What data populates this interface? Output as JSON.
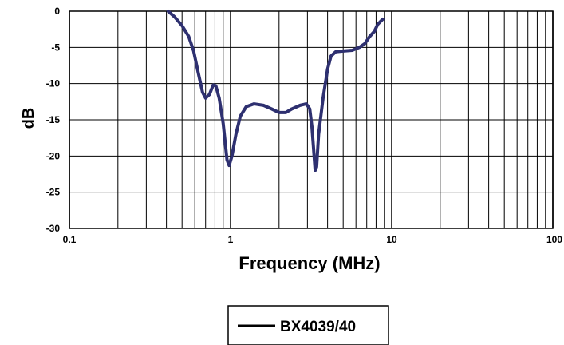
{
  "chart_data": {
    "type": "line",
    "xscale": "log",
    "xlim": [
      0.1,
      100
    ],
    "ylim": [
      -30,
      0
    ],
    "xlabel": "Frequency (MHz)",
    "ylabel": "dB",
    "xticks": [
      {
        "value": 0.1,
        "label": "0.1"
      },
      {
        "value": 1,
        "label": "1"
      },
      {
        "value": 10,
        "label": "10"
      },
      {
        "value": 100,
        "label": "100"
      }
    ],
    "yticks": [
      {
        "value": 0,
        "label": "0"
      },
      {
        "value": -5,
        "label": "-5"
      },
      {
        "value": -10,
        "label": "-10"
      },
      {
        "value": -15,
        "label": "-15"
      },
      {
        "value": -20,
        "label": "-20"
      },
      {
        "value": -25,
        "label": "-25"
      },
      {
        "value": -30,
        "label": "-30"
      }
    ],
    "grid": true,
    "legend_position": "bottom-center",
    "series": [
      {
        "name": "BX4039/40",
        "color": "#2e3070",
        "points": [
          [
            0.41,
            0.0
          ],
          [
            0.45,
            -0.8
          ],
          [
            0.5,
            -2.0
          ],
          [
            0.55,
            -3.5
          ],
          [
            0.59,
            -5.5
          ],
          [
            0.63,
            -8.5
          ],
          [
            0.67,
            -11.2
          ],
          [
            0.7,
            -12.0
          ],
          [
            0.74,
            -11.5
          ],
          [
            0.78,
            -10.2
          ],
          [
            0.81,
            -10.3
          ],
          [
            0.85,
            -12.0
          ],
          [
            0.9,
            -15.5
          ],
          [
            0.95,
            -20.5
          ],
          [
            0.98,
            -21.3
          ],
          [
            1.02,
            -20.0
          ],
          [
            1.08,
            -17.0
          ],
          [
            1.15,
            -14.5
          ],
          [
            1.25,
            -13.2
          ],
          [
            1.4,
            -12.8
          ],
          [
            1.6,
            -13.0
          ],
          [
            1.8,
            -13.5
          ],
          [
            2.0,
            -14.0
          ],
          [
            2.2,
            -14.0
          ],
          [
            2.4,
            -13.5
          ],
          [
            2.7,
            -13.0
          ],
          [
            2.95,
            -12.8
          ],
          [
            3.1,
            -13.5
          ],
          [
            3.2,
            -16.0
          ],
          [
            3.3,
            -20.0
          ],
          [
            3.35,
            -22.0
          ],
          [
            3.42,
            -21.5
          ],
          [
            3.52,
            -17.0
          ],
          [
            3.75,
            -12.0
          ],
          [
            4.0,
            -8.0
          ],
          [
            4.2,
            -6.2
          ],
          [
            4.5,
            -5.6
          ],
          [
            5.0,
            -5.5
          ],
          [
            5.7,
            -5.4
          ],
          [
            6.3,
            -5.0
          ],
          [
            6.8,
            -4.5
          ],
          [
            7.3,
            -3.5
          ],
          [
            7.8,
            -2.8
          ],
          [
            8.2,
            -1.8
          ],
          [
            8.8,
            -1.1
          ]
        ]
      }
    ]
  }
}
